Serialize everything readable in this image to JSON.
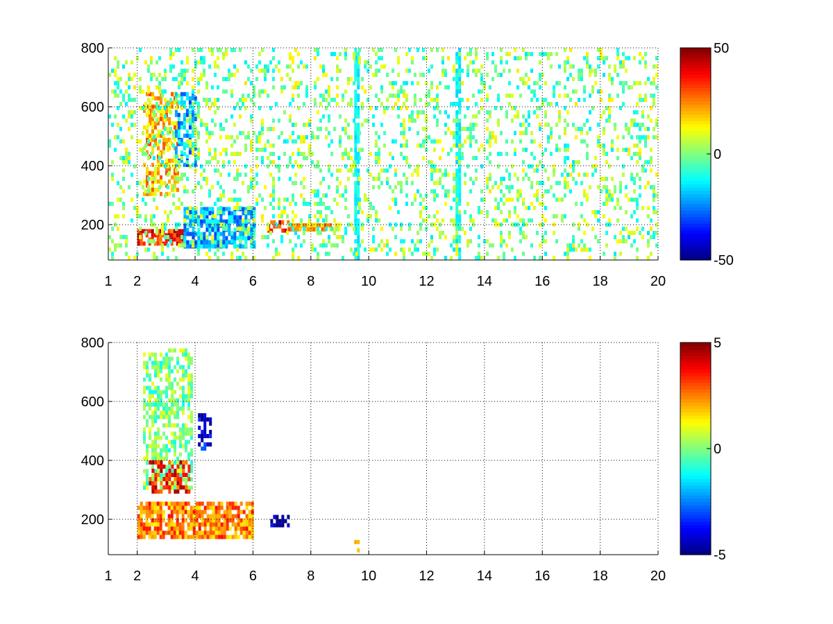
{
  "chart_data": [
    {
      "type": "heatmap",
      "title": "",
      "xlabel": "",
      "ylabel": "",
      "xlim": [
        1,
        20
      ],
      "ylim": [
        80,
        800
      ],
      "xticks": [
        1,
        2,
        4,
        6,
        8,
        10,
        12,
        14,
        16,
        18,
        20
      ],
      "yticks": [
        200,
        400,
        600,
        800
      ],
      "grid": true,
      "colormap": "jet",
      "colorbar": {
        "range": [
          -50,
          50
        ],
        "ticks": [
          -50,
          0,
          50
        ]
      },
      "features": [
        {
          "x": [
            2.0,
            3.6
          ],
          "y": [
            140,
            185
          ],
          "value": 35,
          "kind": "band"
        },
        {
          "x": [
            3.6,
            6.0
          ],
          "y": [
            130,
            260
          ],
          "value": -20,
          "kind": "band"
        },
        {
          "x": [
            2.2,
            3.4
          ],
          "y": [
            300,
            650
          ],
          "value": 20,
          "kind": "blob"
        },
        {
          "x": [
            3.3,
            4.0
          ],
          "y": [
            400,
            650
          ],
          "value": -20,
          "kind": "blob"
        },
        {
          "x": [
            6.5,
            7.2
          ],
          "y": [
            180,
            215
          ],
          "value": 35,
          "kind": "blob"
        },
        {
          "x": [
            7.2,
            9.0
          ],
          "y": [
            185,
            205
          ],
          "value": 18,
          "kind": "band"
        },
        {
          "x": [
            9.5,
            9.65
          ],
          "y": [
            80,
            800
          ],
          "value": -12,
          "kind": "stripe"
        },
        {
          "x": [
            13.0,
            13.1
          ],
          "y": [
            80,
            800
          ],
          "value": -12,
          "kind": "stripe"
        },
        {
          "x": [
            1.0,
            20.0
          ],
          "y": [
            80,
            800
          ],
          "value": 0,
          "kind": "noise"
        }
      ]
    },
    {
      "type": "heatmap",
      "title": "",
      "xlabel": "",
      "ylabel": "",
      "xlim": [
        1,
        20
      ],
      "ylim": [
        80,
        800
      ],
      "xticks": [
        1,
        2,
        4,
        6,
        8,
        10,
        12,
        14,
        16,
        18,
        20
      ],
      "yticks": [
        200,
        400,
        600,
        800
      ],
      "grid": true,
      "colormap": "jet",
      "colorbar": {
        "range": [
          -5,
          5
        ],
        "ticks": [
          -5,
          0,
          5
        ]
      },
      "features": [
        {
          "x": [
            2.0,
            6.0
          ],
          "y": [
            140,
            260
          ],
          "value": 2.5,
          "kind": "band"
        },
        {
          "x": [
            2.2,
            3.9
          ],
          "y": [
            300,
            780
          ],
          "value": 0,
          "kind": "blob"
        },
        {
          "x": [
            2.4,
            3.8
          ],
          "y": [
            300,
            400
          ],
          "value": 3.5,
          "kind": "blob"
        },
        {
          "x": [
            6.6,
            7.2
          ],
          "y": [
            180,
            215
          ],
          "value": -4.5,
          "kind": "blob"
        },
        {
          "x": [
            4.1,
            4.5
          ],
          "y": [
            440,
            560
          ],
          "value": -4,
          "kind": "blob"
        },
        {
          "x": [
            9.5,
            9.6
          ],
          "y": [
            100,
            130
          ],
          "value": 2.5,
          "kind": "blob"
        }
      ]
    }
  ]
}
